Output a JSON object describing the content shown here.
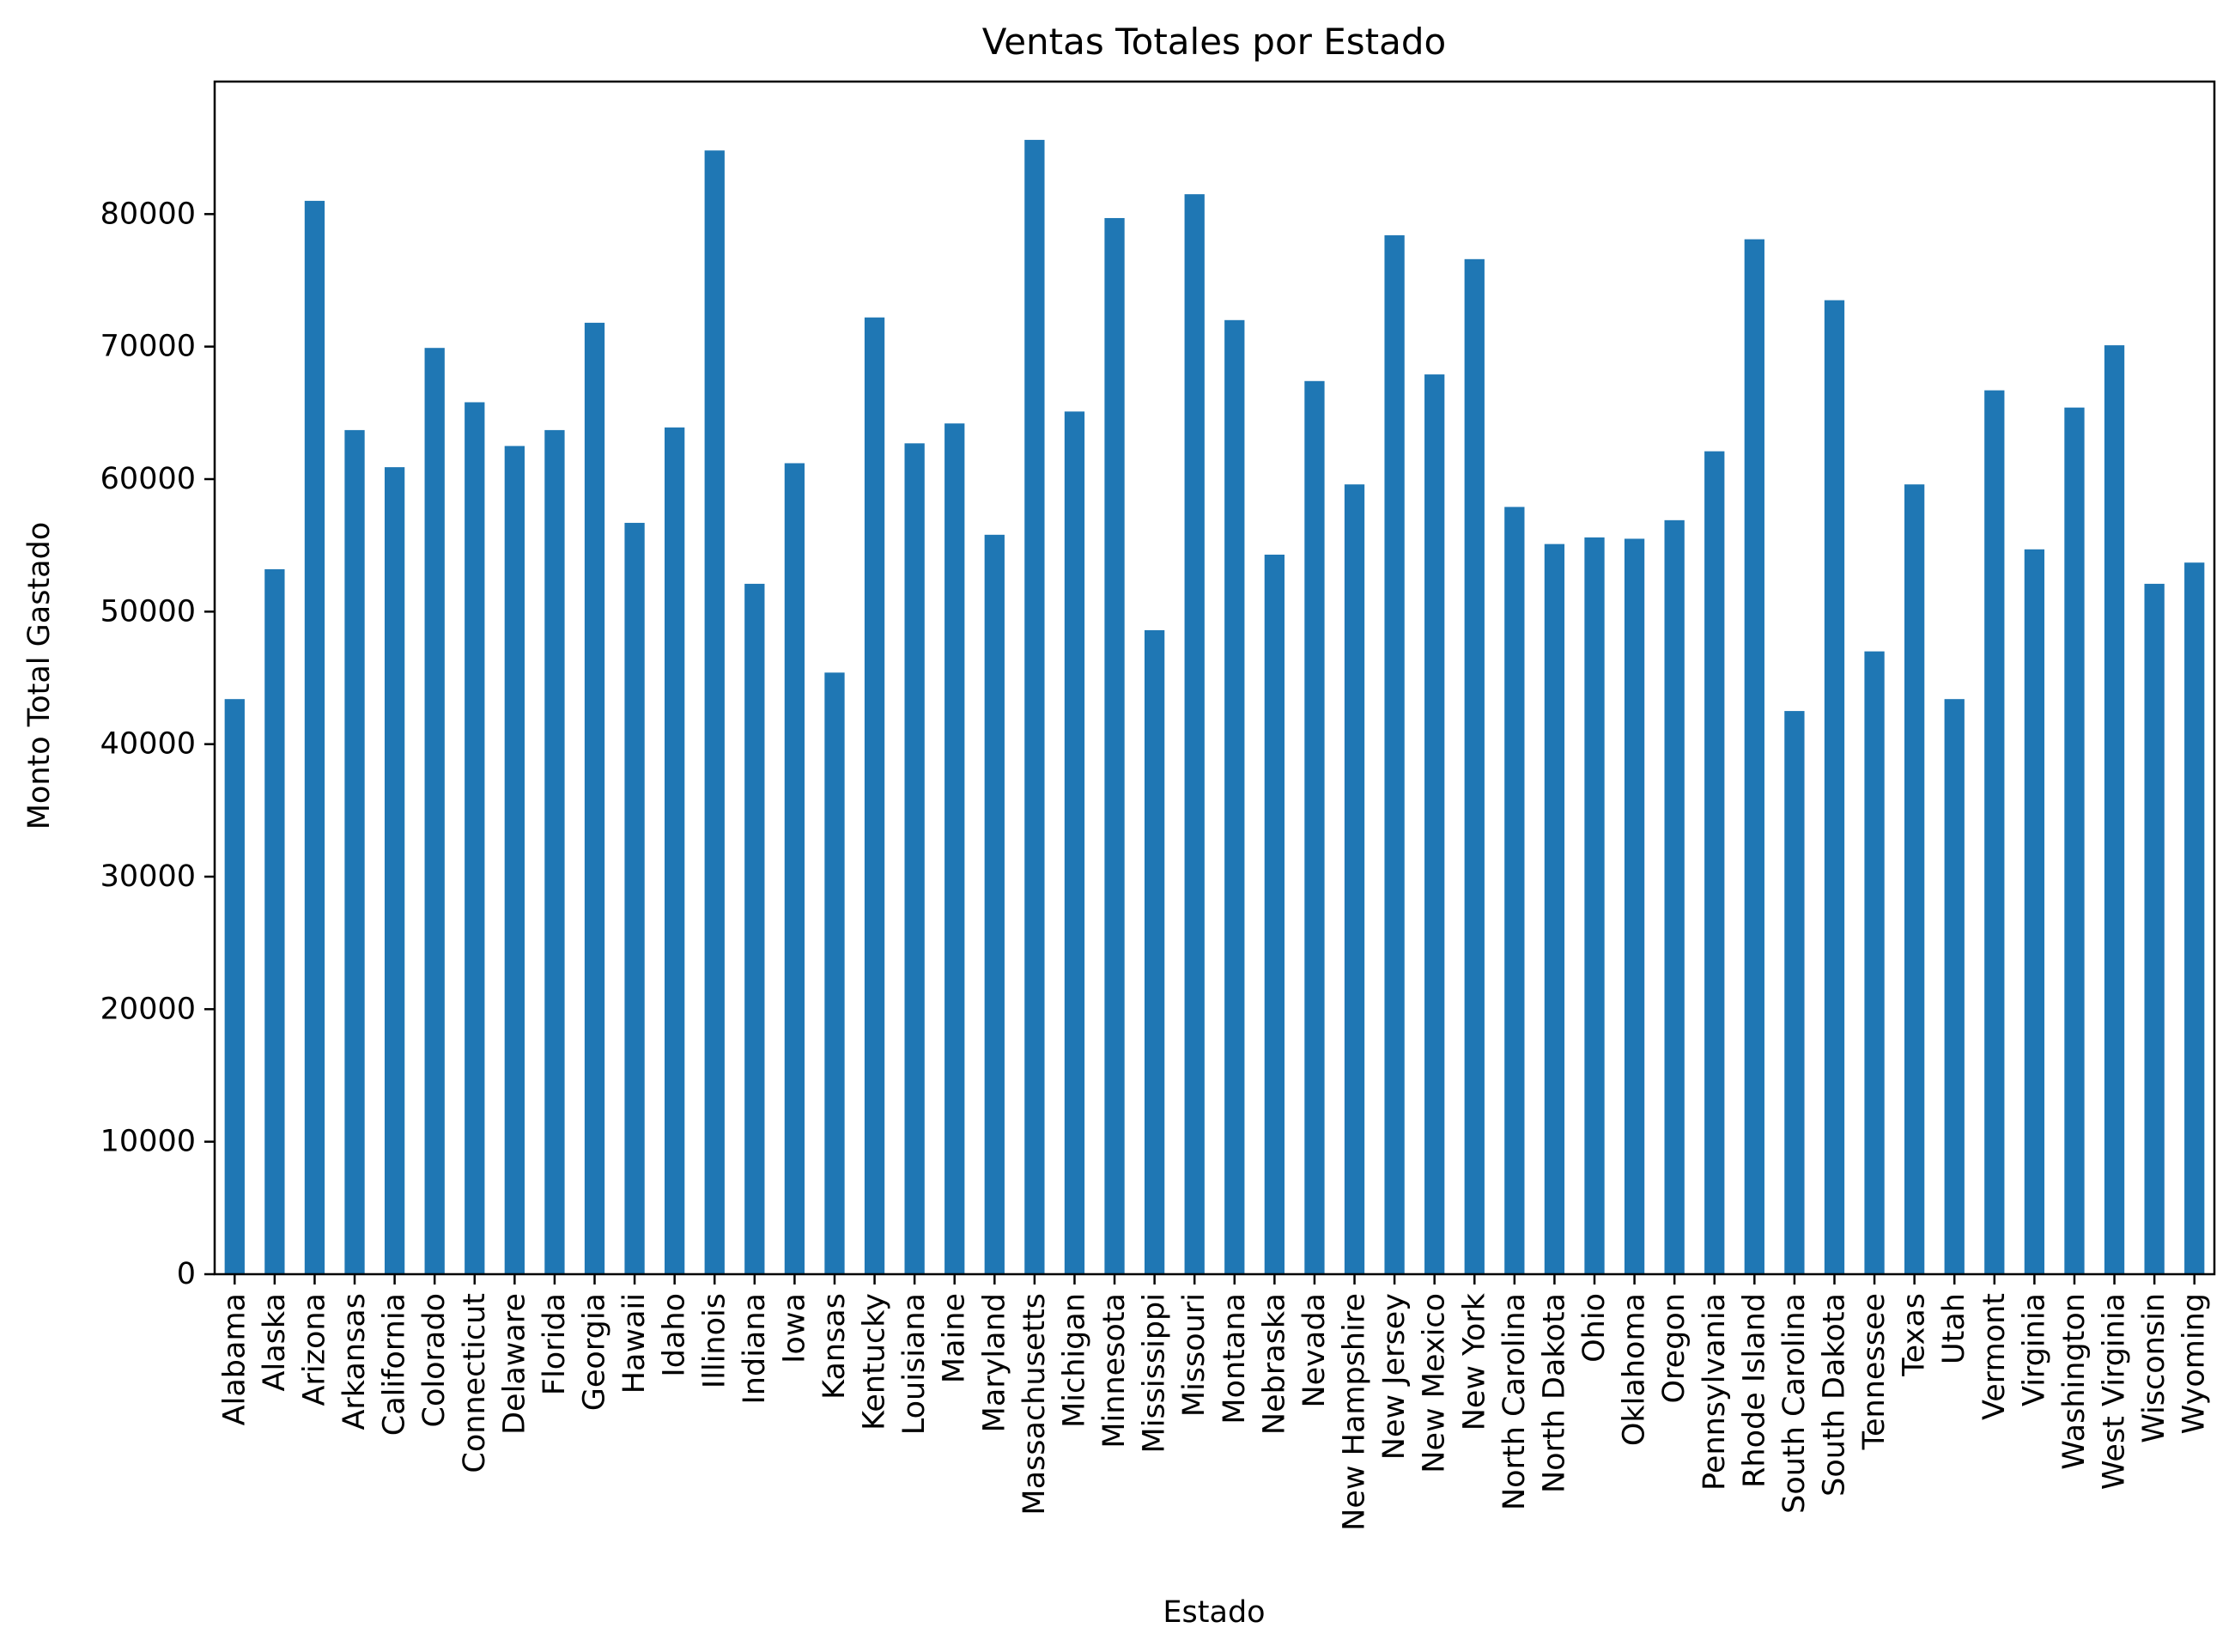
{
  "chart_data": {
    "type": "bar",
    "title": "Ventas Totales por Estado",
    "xlabel": "Estado",
    "ylabel": "Monto Total Gastado",
    "ylim": [
      0,
      90000
    ],
    "yticks": [
      0,
      10000,
      20000,
      30000,
      40000,
      50000,
      60000,
      70000,
      80000
    ],
    "grid": false,
    "bar_color": "#1f77b4",
    "categories": [
      "Alabama",
      "Alaska",
      "Arizona",
      "Arkansas",
      "California",
      "Colorado",
      "Connecticut",
      "Delaware",
      "Florida",
      "Georgia",
      "Hawaii",
      "Idaho",
      "Illinois",
      "Indiana",
      "Iowa",
      "Kansas",
      "Kentucky",
      "Louisiana",
      "Maine",
      "Maryland",
      "Massachusetts",
      "Michigan",
      "Minnesota",
      "Mississippi",
      "Missouri",
      "Montana",
      "Nebraska",
      "Nevada",
      "New Hampshire",
      "New Jersey",
      "New Mexico",
      "New York",
      "North Carolina",
      "North Dakota",
      "Ohio",
      "Oklahoma",
      "Oregon",
      "Pennsylvania",
      "Rhode Island",
      "South Carolina",
      "South Dakota",
      "Tennessee",
      "Texas",
      "Utah",
      "Vermont",
      "Virginia",
      "Washington",
      "West Virginia",
      "Wisconsin",
      "Wyoming"
    ],
    "values": [
      43400,
      53200,
      81000,
      63700,
      60900,
      69900,
      65800,
      62500,
      63700,
      71800,
      56700,
      63900,
      84800,
      52100,
      61200,
      45400,
      72200,
      62700,
      64200,
      55800,
      85600,
      65100,
      79700,
      48600,
      81500,
      72000,
      54300,
      67400,
      59600,
      78400,
      67900,
      76600,
      57900,
      55100,
      55600,
      55500,
      56900,
      62100,
      78100,
      42500,
      73500,
      47000,
      59600,
      43400,
      66700,
      54700,
      65400,
      70100,
      52100,
      53700
    ]
  }
}
